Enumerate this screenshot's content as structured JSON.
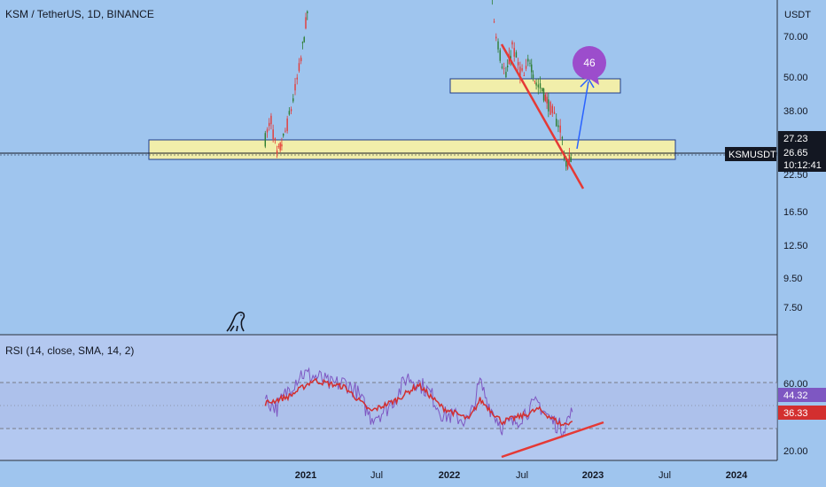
{
  "header": {
    "title": "KSM / TetherUS, 1D, BINANCE"
  },
  "rsi_header": {
    "title": "RSI (14, close, SMA, 14, 2)"
  },
  "price_axis": {
    "unit": "USDT",
    "ticks": [
      "70.00",
      "50.00",
      "38.00",
      "22.50",
      "16.50",
      "12.50",
      "9.50",
      "7.50"
    ]
  },
  "rsi_axis": {
    "ticks": [
      "60.00",
      "20.00"
    ]
  },
  "x_axis": {
    "ticks": [
      "2021",
      "Jul",
      "2022",
      "Jul",
      "2023",
      "Jul",
      "2024"
    ]
  },
  "price_tags": {
    "high_line": "27.23",
    "symbol": "KSMUSDT",
    "last_price": "26.65",
    "countdown": "10:12:41"
  },
  "rsi_tags": {
    "rsi": "44.32",
    "rsi_ma": "36.33"
  },
  "callout": {
    "label": "46"
  },
  "colors": {
    "background": "#9fc5ee",
    "rsi_pane": "#b3c8f0",
    "candle_up": "#2e7d32",
    "candle_down": "#e53935",
    "zone_fill": "#fff59d",
    "trendline": "#e53935",
    "target_arrow": "#2962ff",
    "callout": "#9c4dcc",
    "rsi_line": "#7e57c2",
    "rsi_ma": "#d32f2f"
  },
  "chart_data": [
    {
      "type": "candlestick",
      "title": "KSM / TetherUS, 1D, BINANCE",
      "ylabel": "USDT",
      "y_scale": "log",
      "x_range": [
        "2020-09",
        "2024-03"
      ],
      "last_price": 26.65,
      "zones": [
        {
          "low": 25.5,
          "high": 28.5
        },
        {
          "low": 46,
          "high": 52
        }
      ],
      "target": 46,
      "series": [
        {
          "points": [
            {
              "date": "2020-09-20",
              "close": 30
            },
            {
              "date": "2020-10-05",
              "close": 35
            },
            {
              "date": "2020-10-20",
              "close": 26
            },
            {
              "date": "2020-11-05",
              "close": 30
            },
            {
              "date": "2020-11-20",
              "close": 36
            },
            {
              "date": "2020-12-05",
              "close": 45
            },
            {
              "date": "2020-12-20",
              "close": 58
            },
            {
              "date": "2021-01-05",
              "close": 85
            },
            {
              "date": "2021-01-20",
              "close": 140
            },
            {
              "date": "2022-04-10",
              "close": 140
            },
            {
              "date": "2022-04-25",
              "close": 80
            },
            {
              "date": "2022-05-10",
              "close": 60
            },
            {
              "date": "2022-05-25",
              "close": 50
            },
            {
              "date": "2022-06-10",
              "close": 65
            },
            {
              "date": "2022-06-25",
              "close": 55
            },
            {
              "date": "2022-07-10",
              "close": 50
            },
            {
              "date": "2022-07-25",
              "close": 58
            },
            {
              "date": "2022-08-10",
              "close": 47
            },
            {
              "date": "2022-08-25",
              "close": 45
            },
            {
              "date": "2022-09-10",
              "close": 40
            },
            {
              "date": "2022-09-25",
              "close": 36
            },
            {
              "date": "2022-10-10",
              "close": 33
            },
            {
              "date": "2022-10-25",
              "close": 24
            },
            {
              "date": "2022-11-10",
              "close": 26.65
            }
          ]
        }
      ]
    },
    {
      "type": "line",
      "title": "RSI (14, close, SMA, 14, 2)",
      "ylim": [
        10,
        90
      ],
      "levels": [
        70,
        50,
        30
      ],
      "series": [
        {
          "points": [
            {
              "date": "2020-09-20",
              "value": 55
            },
            {
              "date": "2020-10-20",
              "value": 48
            },
            {
              "date": "2020-11-20",
              "value": 65
            },
            {
              "date": "2020-12-20",
              "value": 78
            },
            {
              "date": "2021-02-05",
              "value": 74
            },
            {
              "date": "2021-03-05",
              "value": 68
            },
            {
              "date": "2021-04-10",
              "value": 70
            },
            {
              "date": "2021-05-10",
              "value": 62
            },
            {
              "date": "2021-06-15",
              "value": 40
            },
            {
              "date": "2021-07-20",
              "value": 45
            },
            {
              "date": "2021-08-20",
              "value": 58
            },
            {
              "date": "2021-09-15",
              "value": 75
            },
            {
              "date": "2021-10-15",
              "value": 70
            },
            {
              "date": "2021-11-15",
              "value": 60
            },
            {
              "date": "2021-12-15",
              "value": 42
            },
            {
              "date": "2022-01-20",
              "value": 40
            },
            {
              "date": "2022-02-20",
              "value": 36
            },
            {
              "date": "2022-03-20",
              "value": 70
            },
            {
              "date": "2022-04-15",
              "value": 48
            },
            {
              "date": "2022-05-15",
              "value": 32
            },
            {
              "date": "2022-06-15",
              "value": 35
            },
            {
              "date": "2022-07-15",
              "value": 45
            },
            {
              "date": "2022-08-15",
              "value": 52
            },
            {
              "date": "2022-09-15",
              "value": 38
            },
            {
              "date": "2022-10-15",
              "value": 30
            },
            {
              "date": "2022-11-10",
              "value": 44.32
            }
          ]
        },
        {
          "points": [
            {
              "date": "2020-09-20",
              "value": 52
            },
            {
              "date": "2020-11-20",
              "value": 58
            },
            {
              "date": "2021-01-20",
              "value": 72
            },
            {
              "date": "2021-04-10",
              "value": 66
            },
            {
              "date": "2021-06-15",
              "value": 45
            },
            {
              "date": "2021-08-20",
              "value": 55
            },
            {
              "date": "2021-10-15",
              "value": 68
            },
            {
              "date": "2021-12-15",
              "value": 48
            },
            {
              "date": "2022-02-20",
              "value": 38
            },
            {
              "date": "2022-03-20",
              "value": 55
            },
            {
              "date": "2022-05-15",
              "value": 36
            },
            {
              "date": "2022-07-15",
              "value": 42
            },
            {
              "date": "2022-08-15",
              "value": 47
            },
            {
              "date": "2022-10-15",
              "value": 33
            },
            {
              "date": "2022-11-10",
              "value": 36.33
            }
          ]
        }
      ]
    }
  ]
}
